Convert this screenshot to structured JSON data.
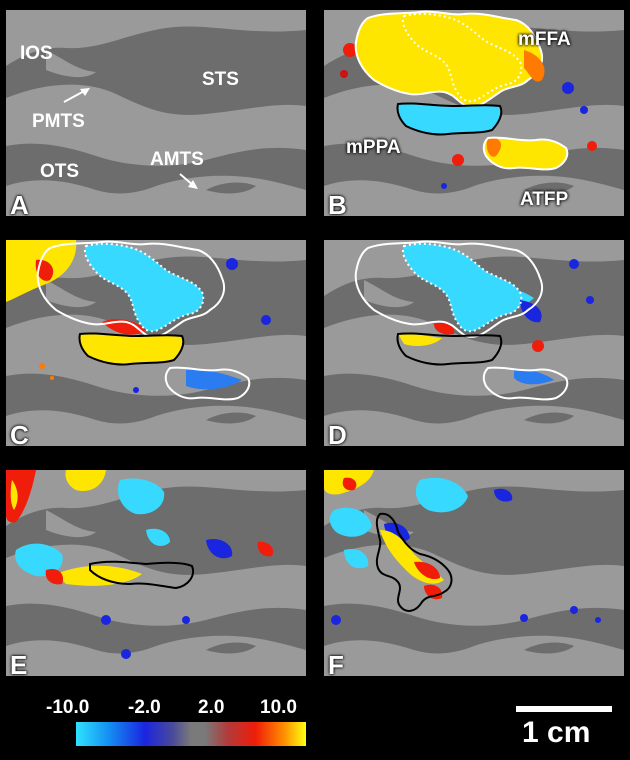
{
  "panels": {
    "A": {
      "label": "A",
      "anatomy": {
        "ios": "IOS",
        "sts": "STS",
        "pmts": "PMTS",
        "ots": "OTS",
        "amts": "AMTS"
      }
    },
    "B": {
      "label": "B",
      "rois": {
        "mffa": "mFFA",
        "mppa": "mPPA",
        "atfp": "ATFP"
      }
    },
    "C": {
      "label": "C"
    },
    "D": {
      "label": "D"
    },
    "E": {
      "label": "E"
    },
    "F": {
      "label": "F"
    }
  },
  "colorbar": {
    "ticks": [
      "-10.0",
      "-2.0",
      "2.0",
      "10.0"
    ],
    "colors": [
      "#2fe3ff",
      "#1a25e0",
      "#7a7a7a",
      "#ef1d0a",
      "#ffff10"
    ]
  },
  "scale": {
    "label": "1 cm"
  },
  "colors": {
    "sulcus": "#6d6d6d",
    "gyrus": "#9a9a9a",
    "positive": "#ffe600",
    "negative": "#38d9ff"
  }
}
